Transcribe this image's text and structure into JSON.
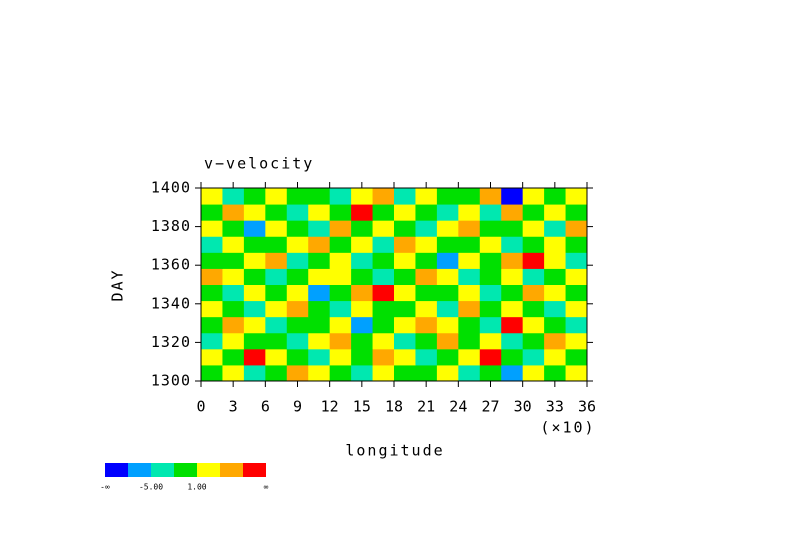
{
  "chart_data": {
    "type": "contour",
    "title": "v−velocity",
    "x_label": "longitude",
    "x_multiplier": "(×10)",
    "y_label": "DAY",
    "xlim": [
      0,
      36
    ],
    "xticks": [
      0,
      3,
      6,
      9,
      12,
      15,
      18,
      21,
      24,
      27,
      30,
      33,
      36
    ],
    "ylim": [
      1300,
      1400
    ],
    "yticks": [
      1300,
      1320,
      1340,
      1360,
      1380,
      1400
    ],
    "levels": [
      -8,
      -5,
      -2,
      1,
      4,
      7
    ],
    "colors": [
      "#0000ff",
      "#00a0ff",
      "#00e8b0",
      "#00e000",
      "#ffff00",
      "#ffa800",
      "#ff0000"
    ],
    "colorbar_labels": [
      {
        "edge": 0,
        "label": "-∞"
      },
      {
        "edge": 2,
        "label": "-5.00"
      },
      {
        "edge": 4,
        "label": "1.00"
      },
      {
        "edge": 7,
        "label": "∞"
      }
    ],
    "z": [
      [
        0,
        2,
        -3,
        0,
        5,
        2,
        0,
        -3,
        2,
        0,
        0,
        2,
        -3,
        0,
        -6,
        2,
        0,
        2
      ],
      [
        2,
        0,
        9,
        2,
        0,
        -3,
        2,
        0,
        5,
        2,
        -3,
        0,
        2,
        9,
        0,
        -3,
        2,
        0
      ],
      [
        -3,
        2,
        0,
        0,
        -3,
        2,
        5,
        0,
        2,
        -3,
        0,
        5,
        0,
        2,
        -3,
        0,
        5,
        2
      ],
      [
        0,
        5,
        2,
        -3,
        0,
        0,
        2,
        -6,
        0,
        2,
        5,
        2,
        0,
        -3,
        9,
        2,
        0,
        -3
      ],
      [
        2,
        0,
        -3,
        2,
        5,
        0,
        -3,
        2,
        0,
        0,
        2,
        -3,
        5,
        0,
        2,
        0,
        -3,
        2
      ],
      [
        0,
        -3,
        2,
        0,
        2,
        -6,
        0,
        5,
        9,
        2,
        0,
        0,
        2,
        -3,
        0,
        5,
        2,
        0
      ],
      [
        5,
        2,
        0,
        -3,
        0,
        2,
        2,
        0,
        -3,
        0,
        5,
        2,
        -3,
        0,
        2,
        -3,
        0,
        2
      ],
      [
        0,
        0,
        2,
        5,
        -3,
        0,
        2,
        -3,
        0,
        2,
        0,
        -6,
        2,
        0,
        5,
        9,
        2,
        -3
      ],
      [
        -3,
        2,
        0,
        0,
        2,
        5,
        0,
        2,
        -3,
        5,
        2,
        0,
        0,
        2,
        -3,
        0,
        2,
        0
      ],
      [
        2,
        0,
        -6,
        2,
        0,
        -3,
        5,
        0,
        2,
        0,
        -3,
        2,
        5,
        0,
        0,
        2,
        -3,
        5
      ],
      [
        0,
        5,
        2,
        0,
        -3,
        2,
        0,
        9,
        0,
        2,
        0,
        -3,
        2,
        -3,
        5,
        0,
        2,
        0
      ],
      [
        2,
        -3,
        0,
        2,
        0,
        0,
        -3,
        2,
        5,
        -3,
        2,
        0,
        0,
        5,
        -10,
        2,
        0,
        2
      ]
    ]
  }
}
